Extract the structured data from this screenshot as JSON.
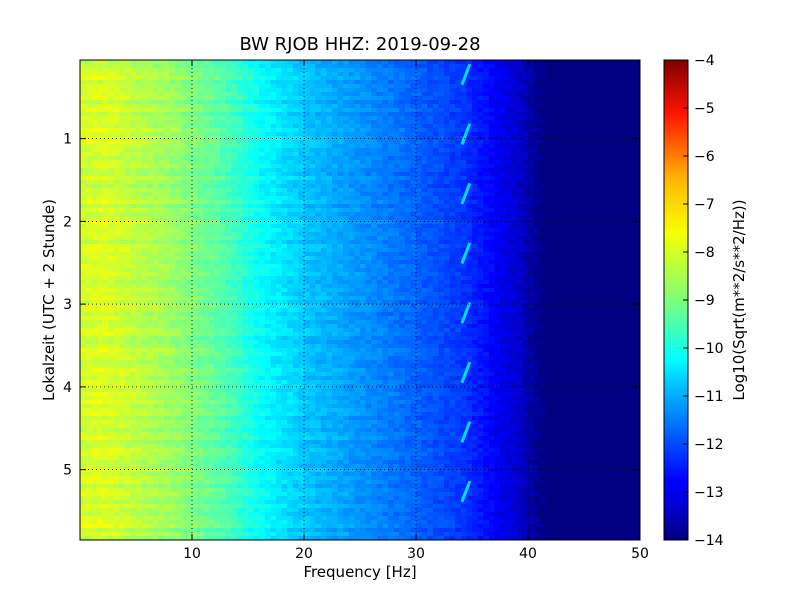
{
  "chart_data": {
    "type": "heatmap",
    "title": "BW RJOB HHZ: 2019-09-28",
    "xlabel": "Frequency [Hz]",
    "ylabel": "Lokalzeit (UTC + 2 Stunde)",
    "xlim": [
      0,
      50
    ],
    "ylim": [
      5.85,
      0.05
    ],
    "x_ticks": [
      10,
      20,
      30,
      40,
      50
    ],
    "x_tick_labels": [
      "10",
      "20",
      "30",
      "40",
      "50"
    ],
    "y_ticks": [
      1,
      2,
      3,
      4,
      5
    ],
    "y_tick_labels": [
      "1",
      "2",
      "3",
      "4",
      "5"
    ],
    "y_inverted": true,
    "grid": true,
    "colormap": "jet",
    "colorbar": {
      "label": "Log10(Sqrt(m**2/s**2/Hz))",
      "range": [
        -14,
        -4
      ],
      "ticks": [
        -14,
        -13,
        -12,
        -11,
        -10,
        -9,
        -8,
        -7,
        -6,
        -5,
        -4
      ],
      "tick_labels": [
        "−14",
        "−13",
        "−12",
        "−11",
        "−10",
        "−9",
        "−8",
        "−7",
        "−6",
        "−5",
        "−4"
      ]
    },
    "frequency_profile": {
      "frequency": [
        0,
        2,
        5,
        8,
        10,
        12,
        14,
        16,
        18,
        20,
        22,
        24,
        26,
        28,
        30,
        32,
        34,
        35,
        36,
        37,
        38,
        39,
        40,
        41,
        42,
        45,
        50
      ],
      "value": [
        -8.2,
        -8.1,
        -8.4,
        -8.7,
        -9.0,
        -9.3,
        -9.7,
        -10.2,
        -10.5,
        -10.8,
        -11.0,
        -11.2,
        -11.4,
        -11.6,
        -11.8,
        -12.0,
        -12.2,
        -12.4,
        -12.6,
        -12.8,
        -13.0,
        -13.2,
        -13.5,
        -13.9,
        -14.0,
        -14.0,
        -14.0
      ]
    },
    "annotations": [
      {
        "label": "narrow-band line",
        "frequency": 34.5,
        "value": -10.6
      }
    ]
  },
  "colors": {
    "background": "#ffffff",
    "axes": "#000000"
  }
}
